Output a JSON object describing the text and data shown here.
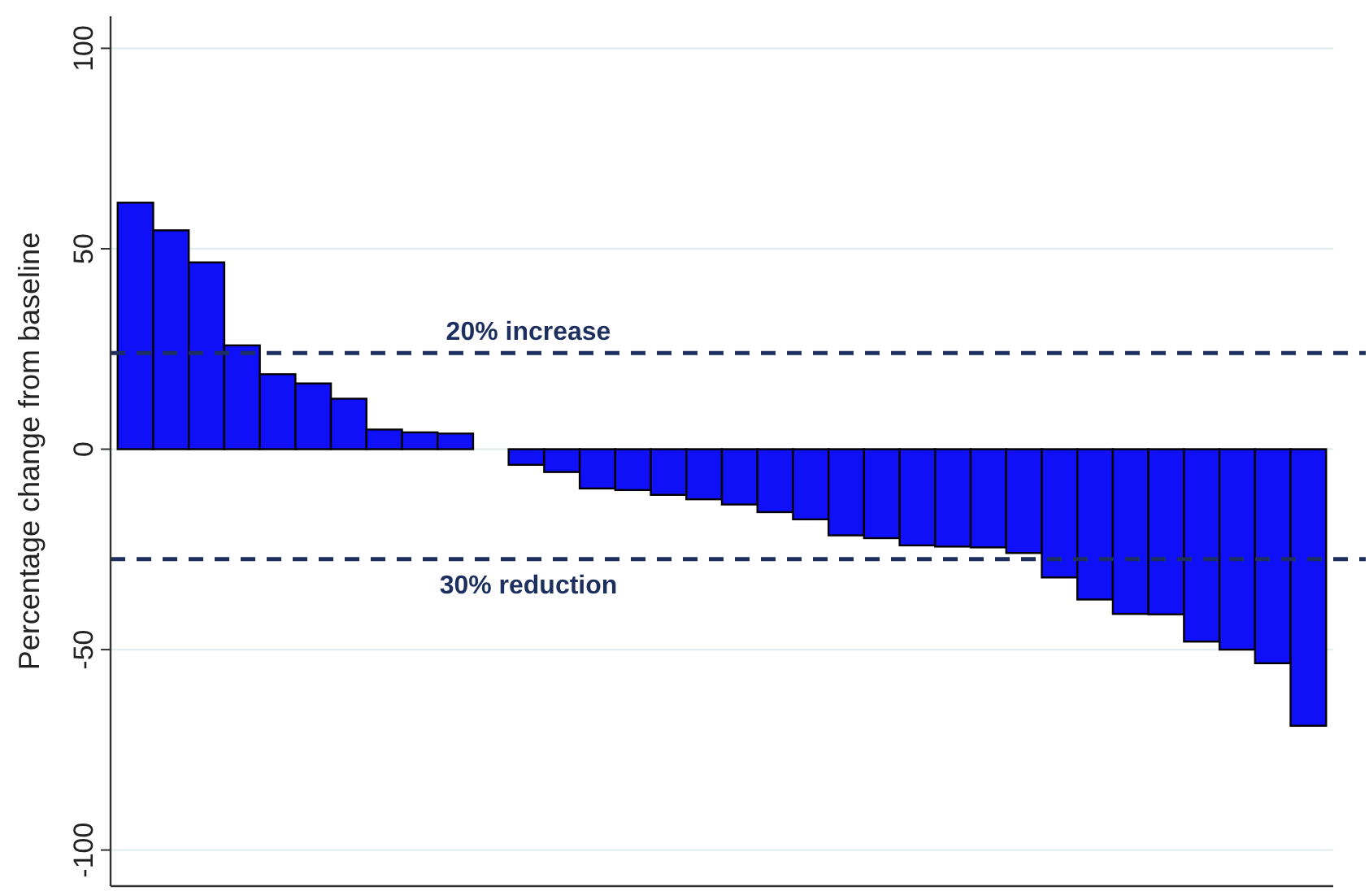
{
  "chart_data": {
    "type": "bar",
    "ylabel": "Percentage change from baseline",
    "categories": [
      null,
      null,
      null,
      null,
      null,
      null,
      null,
      null,
      null,
      null,
      null,
      null,
      null,
      null,
      null,
      null,
      null,
      null,
      null,
      null,
      null,
      null,
      null,
      null,
      null,
      null,
      null,
      null,
      null,
      null,
      null,
      null,
      null,
      null
    ],
    "values": [
      61.5,
      54.6,
      46.6,
      25.9,
      18.7,
      16.4,
      12.6,
      4.9,
      4.2,
      3.9,
      0,
      -3.9,
      -5.7,
      -9.8,
      -10.2,
      -11.4,
      -12.5,
      -13.8,
      -15.7,
      -17.5,
      -21.5,
      -22.2,
      -24.0,
      -24.3,
      -24.5,
      -25.9,
      -32.0,
      -37.5,
      -41.1,
      -41.2,
      -48.0,
      -50.0,
      -53.4,
      -69.0
    ],
    "color": "#1010f8",
    "ylim": [
      -109,
      108
    ],
    "yticks": [
      -100,
      -50,
      0,
      50,
      100
    ],
    "grid": "y",
    "ref_lines": [
      {
        "axis": "y",
        "value": 24,
        "label": "20% increase",
        "color": "#1c2f5e",
        "line_style": "dashed"
      },
      {
        "axis": "y",
        "value": -27.4,
        "label": "30% reduction",
        "color": "#1c2f5e",
        "line_style": "dashed"
      }
    ]
  }
}
